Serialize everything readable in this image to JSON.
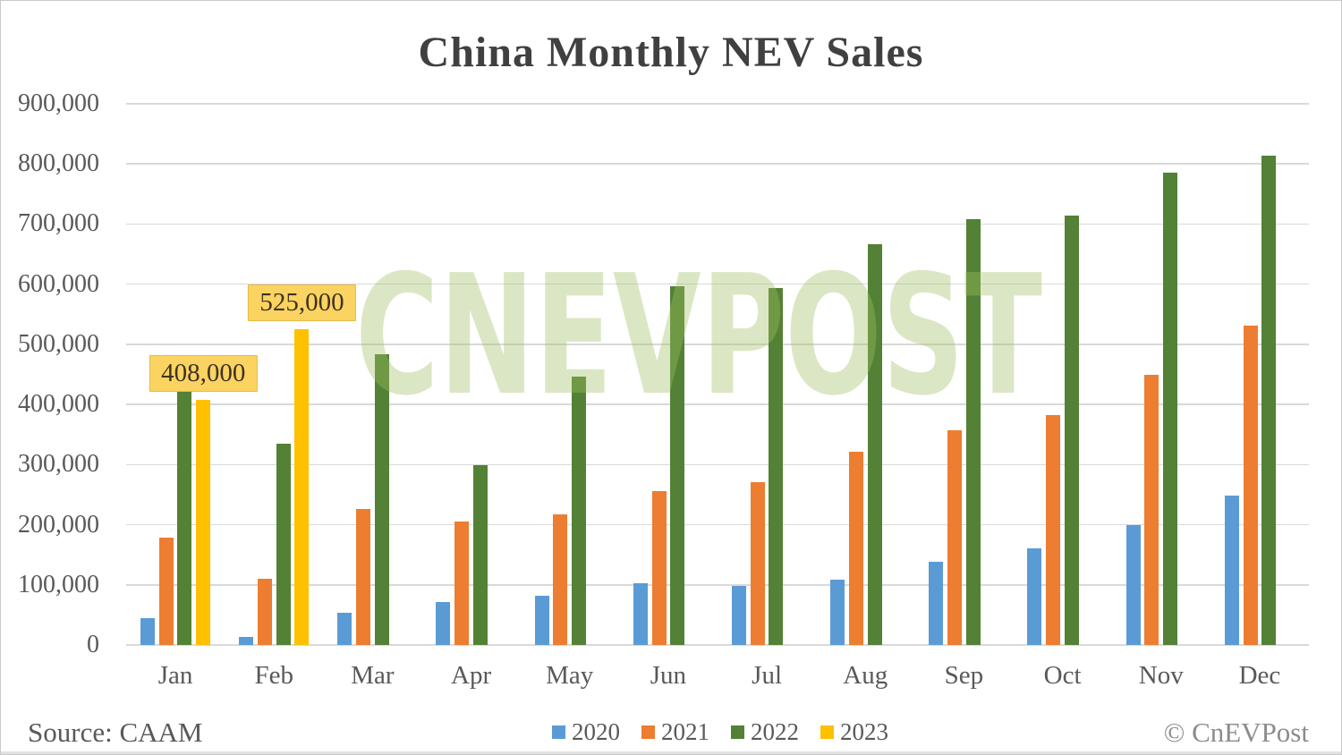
{
  "chart_data": {
    "type": "bar",
    "title": "China Monthly NEV Sales",
    "categories": [
      "Jan",
      "Feb",
      "Mar",
      "Apr",
      "May",
      "Jun",
      "Jul",
      "Aug",
      "Sep",
      "Oct",
      "Nov",
      "Dec"
    ],
    "series": [
      {
        "name": "2020",
        "color": "#5B9BD5",
        "values": [
          44000,
          13000,
          53000,
          72000,
          82000,
          102000,
          98000,
          109000,
          138000,
          160000,
          200000,
          248000
        ]
      },
      {
        "name": "2021",
        "color": "#ED7D31",
        "values": [
          179000,
          110000,
          226000,
          206000,
          217000,
          256000,
          271000,
          321000,
          357000,
          383000,
          450000,
          531000
        ]
      },
      {
        "name": "2022",
        "color": "#538135",
        "values": [
          431000,
          334000,
          484000,
          299000,
          447000,
          596000,
          593000,
          666000,
          708000,
          714000,
          786000,
          814000
        ]
      },
      {
        "name": "2023",
        "color": "#FFC000",
        "values": [
          408000,
          525000,
          null,
          null,
          null,
          null,
          null,
          null,
          null,
          null,
          null,
          null
        ]
      }
    ],
    "annotations": [
      {
        "series": "2023",
        "category": "Jan",
        "text": "408,000"
      },
      {
        "series": "2023",
        "category": "Feb",
        "text": "525,000"
      }
    ],
    "ylim": [
      0,
      900000
    ],
    "ytick_step": 100000,
    "ytick_labels": [
      "0",
      "100,000",
      "200,000",
      "300,000",
      "400,000",
      "500,000",
      "600,000",
      "700,000",
      "800,000",
      "900,000"
    ],
    "grid": true,
    "legend_position": "bottom",
    "gridline_color": "#d9d9d9"
  },
  "watermark": {
    "text": "CNEVPOST"
  },
  "footer": {
    "source": "Source: CAAM",
    "copyright": "© CnEVPost"
  }
}
